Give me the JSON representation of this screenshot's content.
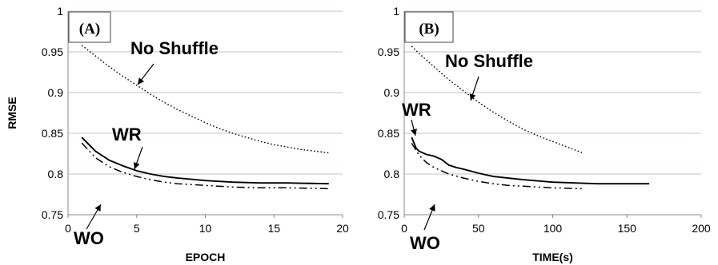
{
  "chart_data": [
    {
      "type": "line",
      "panel_label": "(A)",
      "xlabel": "EPOCH",
      "ylabel": "RMSE",
      "xlim": [
        0,
        20
      ],
      "ylim": [
        0.75,
        1
      ],
      "xticks": [
        "0",
        "5",
        "10",
        "15",
        "20"
      ],
      "yticks": [
        "0.75",
        "0.8",
        "0.85",
        "0.9",
        "0.95",
        "1"
      ],
      "grid": "horizontal",
      "series": [
        {
          "name": "No Shuffle",
          "style": "dotted",
          "x": [
            1,
            2,
            3,
            4,
            5,
            6,
            7,
            8,
            9,
            10,
            11,
            12,
            13,
            14,
            15,
            16,
            17,
            18,
            19
          ],
          "y": [
            0.958,
            0.945,
            0.932,
            0.92,
            0.909,
            0.898,
            0.888,
            0.879,
            0.871,
            0.863,
            0.856,
            0.85,
            0.845,
            0.84,
            0.836,
            0.833,
            0.83,
            0.828,
            0.826
          ]
        },
        {
          "name": "WR",
          "style": "solid",
          "x": [
            1,
            2,
            3,
            4,
            5,
            6,
            7,
            8,
            10,
            12,
            14,
            16,
            19
          ],
          "y": [
            0.845,
            0.828,
            0.817,
            0.81,
            0.804,
            0.8,
            0.797,
            0.795,
            0.792,
            0.79,
            0.789,
            0.789,
            0.788
          ]
        },
        {
          "name": "WO",
          "style": "dashdot",
          "x": [
            1,
            2,
            3,
            4,
            5,
            6,
            7,
            8,
            10,
            12,
            14,
            16,
            19
          ],
          "y": [
            0.838,
            0.82,
            0.809,
            0.802,
            0.797,
            0.793,
            0.79,
            0.788,
            0.786,
            0.784,
            0.783,
            0.783,
            0.782
          ]
        }
      ],
      "annotations": [
        {
          "text": "No Shuffle"
        },
        {
          "text": "WR"
        },
        {
          "text": "WO"
        }
      ]
    },
    {
      "type": "line",
      "panel_label": "(B)",
      "xlabel": "TIME(s)",
      "ylabel": "",
      "xlim": [
        0,
        200
      ],
      "ylim": [
        0.75,
        1
      ],
      "xticks": [
        "0",
        "50",
        "100",
        "150",
        "200"
      ],
      "yticks": [
        "0.75",
        "0.8",
        "0.85",
        "0.9",
        "0.95",
        "1"
      ],
      "grid": "horizontal",
      "series": [
        {
          "name": "No Shuffle",
          "style": "dotted",
          "x": [
            5,
            10,
            20,
            30,
            40,
            50,
            60,
            70,
            80,
            90,
            100,
            110,
            120
          ],
          "y": [
            0.957,
            0.948,
            0.932,
            0.916,
            0.902,
            0.888,
            0.876,
            0.865,
            0.855,
            0.847,
            0.84,
            0.833,
            0.826
          ]
        },
        {
          "name": "WR",
          "style": "solid",
          "x": [
            5,
            8,
            10,
            15,
            20,
            25,
            30,
            35,
            40,
            50,
            60,
            80,
            100,
            130,
            165
          ],
          "y": [
            0.845,
            0.832,
            0.828,
            0.824,
            0.822,
            0.818,
            0.811,
            0.808,
            0.806,
            0.801,
            0.797,
            0.793,
            0.79,
            0.788,
            0.788
          ]
        },
        {
          "name": "WO",
          "style": "dashdot",
          "x": [
            5,
            10,
            15,
            20,
            30,
            40,
            50,
            60,
            70,
            80,
            100,
            120
          ],
          "y": [
            0.838,
            0.823,
            0.814,
            0.808,
            0.8,
            0.795,
            0.791,
            0.788,
            0.786,
            0.785,
            0.783,
            0.782
          ]
        }
      ],
      "annotations": [
        {
          "text": "No Shuffle"
        },
        {
          "text": "WR"
        },
        {
          "text": "WO"
        }
      ]
    }
  ]
}
